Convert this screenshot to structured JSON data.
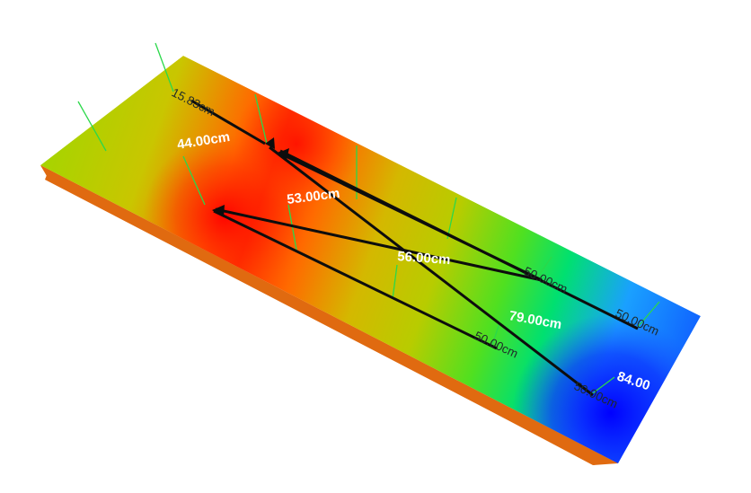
{
  "labels": {
    "l1": "15.83cm",
    "l2": "44.00cm",
    "l3": "53.00cm",
    "l4": "56.00cm",
    "l5": "50.00cm",
    "l6": "50.00cm",
    "l7": "79.00cm",
    "l8": "50.00cm",
    "l9": "84.00",
    "l10": "50.00cm"
  },
  "colors": {
    "hot": "#ff1a00",
    "warm": "#ff7a00",
    "mid": "#a8d800",
    "cool": "#00e060",
    "cold": "#1a7cff",
    "coldest": "#0000ff",
    "base": "#e06a10"
  }
}
